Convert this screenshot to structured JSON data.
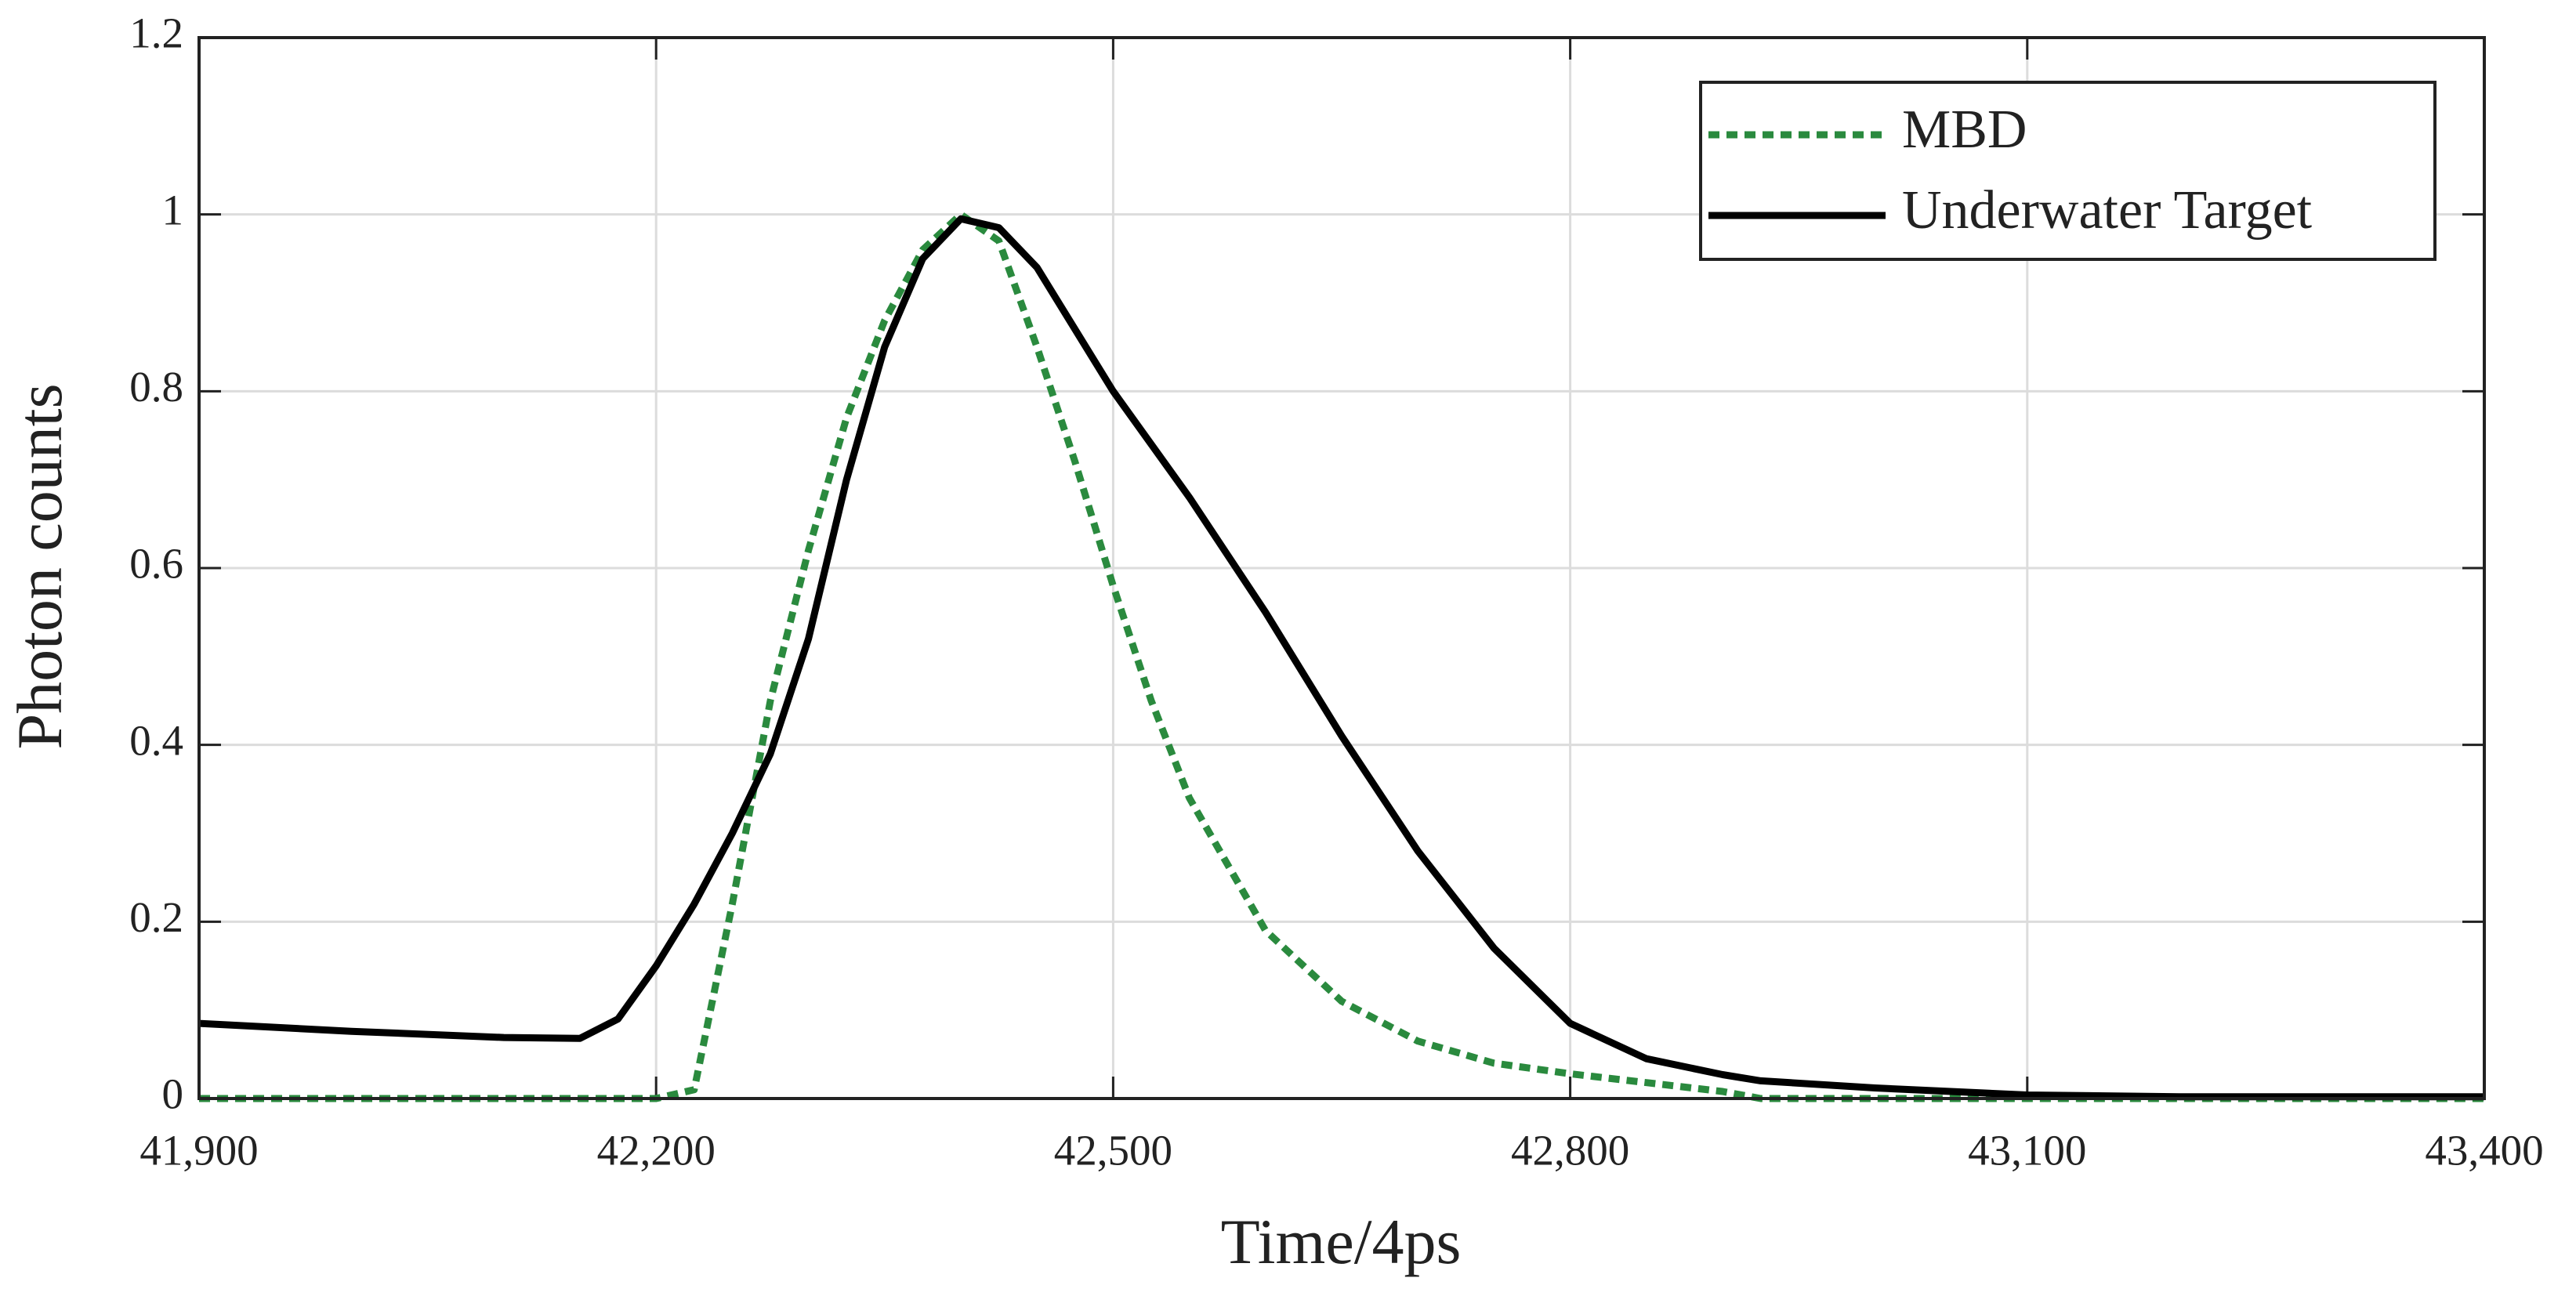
{
  "chart_data": {
    "type": "line",
    "xlabel": "Time/4ps",
    "ylabel": "Photon counts",
    "x": [
      41900,
      42000,
      42100,
      42150,
      42175,
      42200,
      42225,
      42250,
      42275,
      42300,
      42325,
      42350,
      42375,
      42400,
      42425,
      42450,
      42475,
      42500,
      42525,
      42550,
      42600,
      42650,
      42700,
      42750,
      42800,
      42850,
      42900,
      42925,
      43000,
      43100,
      43200,
      43400
    ],
    "series": [
      {
        "name": "MBD",
        "color": "#2a8a3e",
        "style": "dotted",
        "values": [
          0,
          0,
          0,
          0,
          0,
          0,
          0.01,
          0.22,
          0.45,
          0.62,
          0.77,
          0.88,
          0.96,
          1.0,
          0.97,
          0.85,
          0.72,
          0.58,
          0.45,
          0.34,
          0.19,
          0.11,
          0.065,
          0.04,
          0.028,
          0.018,
          0.008,
          0,
          0,
          0,
          0,
          0
        ]
      },
      {
        "name": "Underwater Target",
        "color": "#000000",
        "style": "solid",
        "values": [
          0.085,
          0.076,
          0.069,
          0.068,
          0.09,
          0.15,
          0.22,
          0.3,
          0.39,
          0.52,
          0.7,
          0.85,
          0.95,
          0.995,
          0.985,
          0.94,
          0.87,
          0.8,
          0.74,
          0.68,
          0.55,
          0.41,
          0.28,
          0.17,
          0.085,
          0.045,
          0.027,
          0.02,
          0.012,
          0.004,
          0.002,
          0.002
        ]
      }
    ],
    "xlim": [
      41900,
      43400
    ],
    "xticks": [
      {
        "value": 41900,
        "label": "41,900"
      },
      {
        "value": 42200,
        "label": "42,200"
      },
      {
        "value": 42500,
        "label": "42,500"
      },
      {
        "value": 42800,
        "label": "42,800"
      },
      {
        "value": 43100,
        "label": "43,100"
      },
      {
        "value": 43400,
        "label": "43,400"
      }
    ],
    "ylim": [
      0,
      1.2
    ],
    "yticks": [
      0,
      0.2,
      0.4,
      0.6,
      0.8,
      1,
      1.2
    ],
    "grid": true,
    "legend": "upper right"
  }
}
